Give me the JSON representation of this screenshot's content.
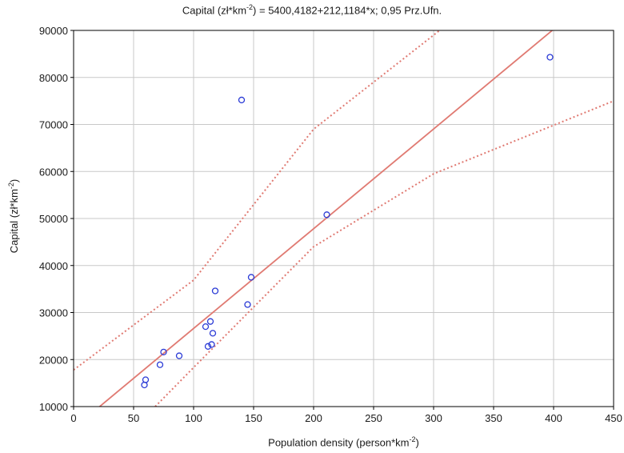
{
  "chart_data": {
    "type": "scatter",
    "title": {
      "pre": "Capital (zł*km",
      "sup": "-2",
      "post": ") = 5400,4182+212,1184*x; 0,95 Prz.Ufn."
    },
    "xlabel": {
      "pre": "Population density (person*km",
      "sup": "-2",
      "post": ")"
    },
    "ylabel": {
      "pre": "Capital (zł*km",
      "sup": "-2",
      "post": ")"
    },
    "xlim": [
      0,
      450
    ],
    "ylim": [
      10000,
      90000
    ],
    "x_ticks": [
      0,
      50,
      100,
      150,
      200,
      250,
      300,
      350,
      400,
      450
    ],
    "y_ticks": [
      10000,
      20000,
      30000,
      40000,
      50000,
      60000,
      70000,
      80000,
      90000
    ],
    "grid": true,
    "colors": {
      "points": "#2b3bd6",
      "fit_line": "#e07a72",
      "confidence_band": "#e07a72",
      "grid": "#c8c8c8"
    },
    "regression": {
      "intercept": 5400.4182,
      "slope": 212.1184
    },
    "confidence_level": 0.95,
    "confidence_band": {
      "upper": [
        [
          0,
          17800
        ],
        [
          100,
          36900
        ],
        [
          200,
          69000
        ],
        [
          320,
          93000
        ]
      ],
      "lower": [
        [
          68,
          10000
        ],
        [
          100,
          18300
        ],
        [
          200,
          44000
        ],
        [
          300,
          59500
        ],
        [
          450,
          75000
        ]
      ]
    },
    "series": [
      {
        "points": [
          [
            59,
            14600
          ],
          [
            60,
            15700
          ],
          [
            72,
            18900
          ],
          [
            75,
            21600
          ],
          [
            88,
            20800
          ],
          [
            110,
            27000
          ],
          [
            112,
            22800
          ],
          [
            114,
            28100
          ],
          [
            115,
            23200
          ],
          [
            116,
            25600
          ],
          [
            118,
            34600
          ],
          [
            140,
            75200
          ],
          [
            145,
            31700
          ],
          [
            148,
            37500
          ],
          [
            211,
            50800
          ],
          [
            397,
            84300
          ]
        ]
      }
    ]
  }
}
